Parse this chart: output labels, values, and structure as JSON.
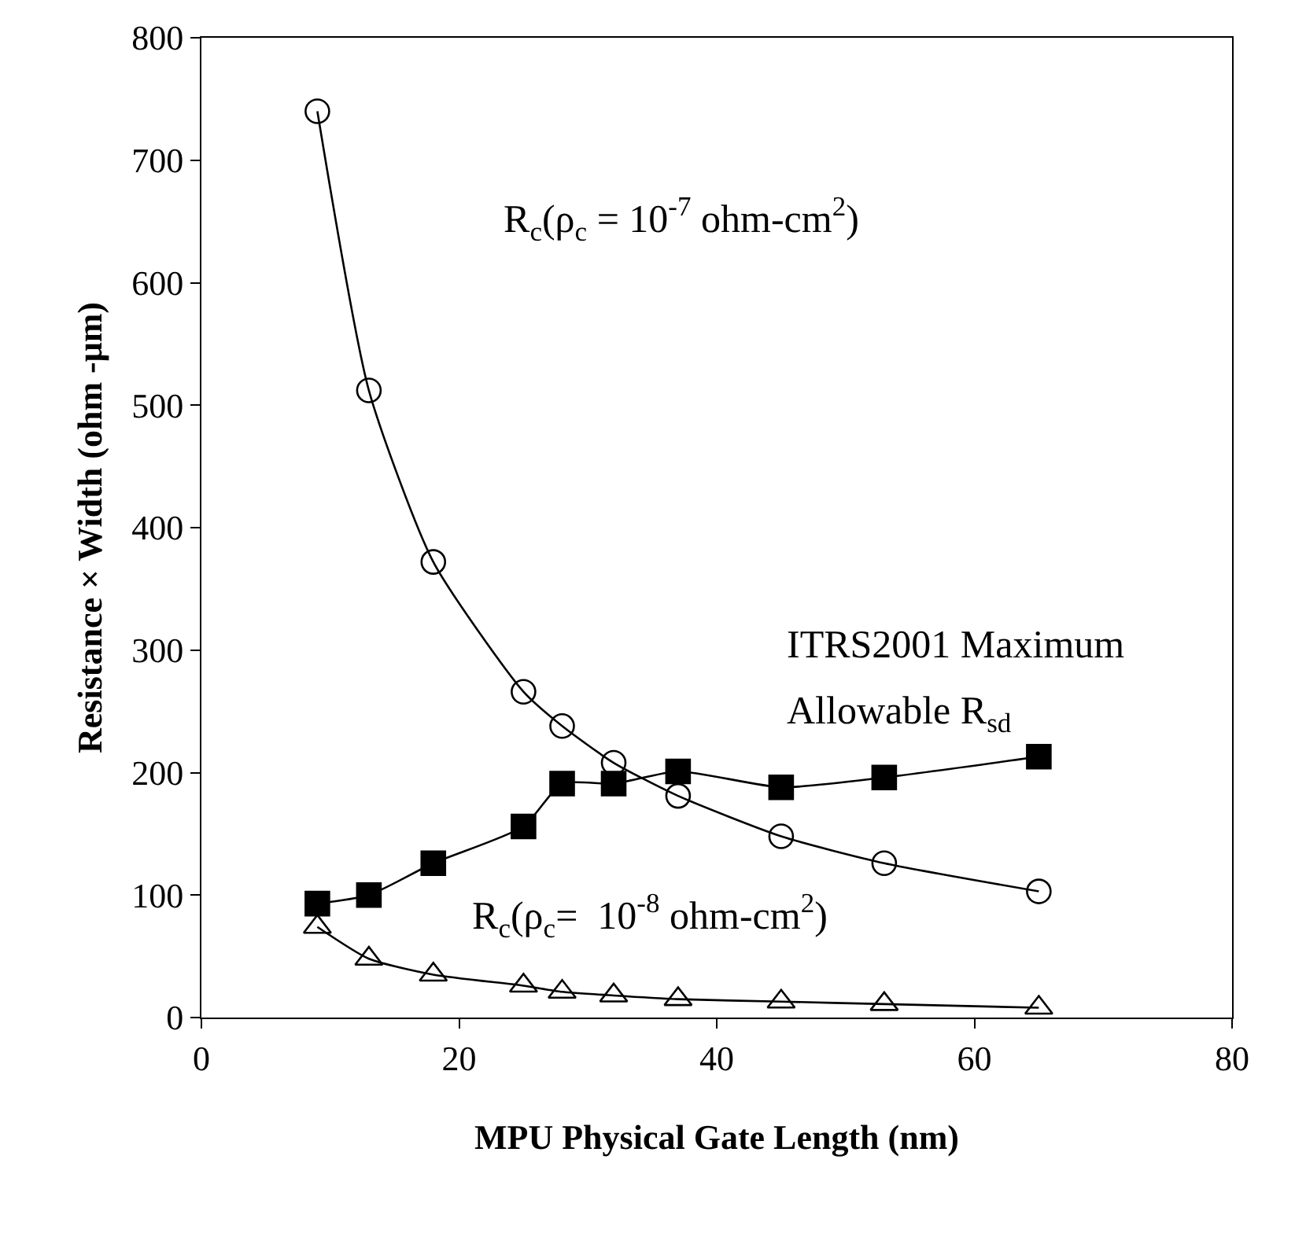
{
  "chart_data": {
    "type": "line",
    "xlabel": "MPU Physical Gate Length (nm)",
    "ylabel": "Resistance × Width (ohm -μm)",
    "x": [
      9,
      13,
      18,
      25,
      28,
      32,
      37,
      45,
      53,
      65
    ],
    "series": [
      {
        "color": "#000000",
        "marker": "circle",
        "values": [
          740,
          512,
          372,
          266,
          238,
          208,
          181,
          148,
          126,
          103
        ]
      },
      {
        "color": "#000000",
        "marker": "square",
        "values": [
          93,
          100,
          126,
          156,
          191,
          191,
          201,
          188,
          196,
          213
        ]
      },
      {
        "color": "#000000",
        "marker": "triangle",
        "values": [
          74,
          48,
          35,
          26,
          21,
          18,
          15,
          13,
          11,
          8
        ]
      }
    ],
    "annotations": [
      "R$_{c}$(ρ$_{c}$ = 10$^{-7}$ ohm-cm$^{2}$)",
      "ITRS2001 Maximum",
      "Allowable R$_{sd}$",
      "R$_{c}$(ρ$_{c}$=  10$^{-8}$ ohm-cm$^{2}$)"
    ],
    "xlim": [
      0,
      80
    ],
    "xticks": [
      0,
      20,
      40,
      60,
      80
    ],
    "ylim": [
      0,
      800
    ],
    "yticks": [
      0,
      100,
      200,
      300,
      400,
      500,
      600,
      700,
      800
    ],
    "line_style": "solid"
  }
}
